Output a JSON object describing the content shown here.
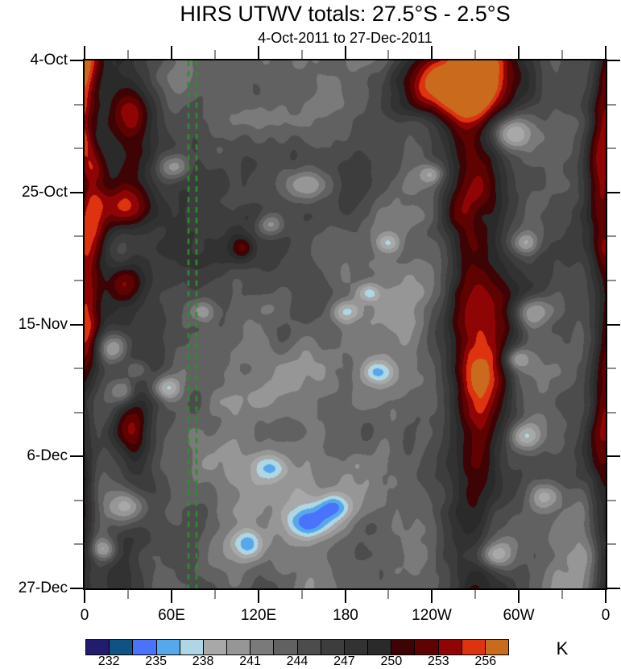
{
  "title": "HIRS UTWV totals: 27.5°S - 2.5°S",
  "subtitle": "4-Oct-2011 to 27-Dec-2011",
  "chart_data": {
    "type": "heatmap",
    "description": "Hovmoller (time-longitude) filled-contour plot of HIRS upper-tropospheric water vapor brightness temperature, grayscale with blue cold and red warm extremes",
    "x_axis": {
      "ticks": [
        "0",
        "60E",
        "120E",
        "180",
        "120W",
        "60W",
        "0"
      ],
      "range_deg": [
        0,
        360
      ],
      "minor_tick_every_deg": 30
    },
    "y_axis": {
      "ticks": [
        "4-Oct",
        "25-Oct",
        "15-Nov",
        "6-Dec",
        "27-Dec"
      ],
      "start": "4-Oct-2011",
      "end": "27-Dec-2011",
      "major_tick_every_days": 21,
      "minor_tick_every_days": 7,
      "total_days": 84
    },
    "colorbar": {
      "units": "K",
      "tick_values": [
        232,
        235,
        238,
        241,
        244,
        247,
        250,
        253,
        256
      ],
      "level_start": 232,
      "level_step": 1.5,
      "colors": [
        "#221c6e",
        "#105283",
        "#4a73fb",
        "#57a8ea",
        "#aed6e4",
        "#a8a8a8",
        "#969696",
        "#7a7a7a",
        "#616161",
        "#4c4c4c",
        "#3d3d3d",
        "#323232",
        "#2a2a2a",
        "#3d0305",
        "#5e0202",
        "#8f0505",
        "#dd330f",
        "#c96a1d"
      ]
    },
    "reference_lines": {
      "color": "#2e8f2e",
      "style": "dashed",
      "x_fracs": [
        0.1994,
        0.2148
      ]
    },
    "approx_field": {
      "base_value": 243.6,
      "warm_bands": [
        {
          "u": 0.0,
          "su": 0.022,
          "amp": 9.0
        },
        {
          "u": 1.0,
          "su": 0.022,
          "amp": 8.5
        },
        {
          "u": 0.748,
          "su": 0.042,
          "amp": 8.5
        },
        {
          "u": 0.085,
          "su": 0.03,
          "amp": 3.2
        }
      ],
      "warm_blobs": [
        [
          0.7,
          0.045,
          12.0,
          0.1,
          0.05
        ],
        [
          0.085,
          0.275,
          6.5,
          0.035,
          0.03
        ],
        [
          0.075,
          0.42,
          6.0,
          0.03,
          0.025
        ],
        [
          0.095,
          0.1,
          5.5,
          0.03,
          0.035
        ],
        [
          0.3,
          0.355,
          5.5,
          0.018,
          0.018
        ],
        [
          0.085,
          0.7,
          4.5,
          0.025,
          0.03
        ],
        [
          0.56,
          0.93,
          4.0,
          0.05,
          0.05
        ],
        [
          0.77,
          0.62,
          4.0,
          0.035,
          0.06
        ],
        [
          0.72,
          0.3,
          4.0,
          0.03,
          0.08
        ]
      ],
      "cool_blobs": [
        [
          0.17,
          0.2,
          6.0,
          0.022,
          0.018
        ],
        [
          0.43,
          0.235,
          6.5,
          0.03,
          0.02
        ],
        [
          0.355,
          0.31,
          5.0,
          0.018,
          0.015
        ],
        [
          0.81,
          0.135,
          7.5,
          0.035,
          0.025
        ],
        [
          0.845,
          0.345,
          5.0,
          0.018,
          0.015
        ],
        [
          0.855,
          0.475,
          7.0,
          0.025,
          0.02
        ],
        [
          0.825,
          0.565,
          5.5,
          0.02,
          0.015
        ],
        [
          0.5,
          0.475,
          6.0,
          0.022,
          0.016
        ],
        [
          0.565,
          0.59,
          6.0,
          0.022,
          0.016
        ],
        [
          0.055,
          0.545,
          6.5,
          0.022,
          0.02
        ],
        [
          0.075,
          0.625,
          6.0,
          0.02,
          0.018
        ],
        [
          0.225,
          0.475,
          5.0,
          0.018,
          0.015
        ],
        [
          0.36,
          0.77,
          6.0,
          0.022,
          0.018
        ],
        [
          0.425,
          0.875,
          7.5,
          0.032,
          0.022
        ],
        [
          0.475,
          0.845,
          6.5,
          0.022,
          0.018
        ],
        [
          0.315,
          0.915,
          6.0,
          0.022,
          0.018
        ],
        [
          0.085,
          0.845,
          7.0,
          0.026,
          0.022
        ],
        [
          0.035,
          0.925,
          6.0,
          0.018,
          0.015
        ],
        [
          0.84,
          0.71,
          6.0,
          0.022,
          0.018
        ],
        [
          0.88,
          0.825,
          6.0,
          0.022,
          0.018
        ],
        [
          0.79,
          0.935,
          6.0,
          0.022,
          0.018
        ],
        [
          0.58,
          0.345,
          5.0,
          0.016,
          0.013
        ],
        [
          0.545,
          0.44,
          5.0,
          0.016,
          0.013
        ],
        [
          0.665,
          0.215,
          4.5,
          0.016,
          0.013
        ],
        [
          0.155,
          0.62,
          6.0,
          0.02,
          0.016
        ],
        [
          0.1,
          0.585,
          5.5,
          0.018,
          0.015
        ]
      ]
    }
  }
}
